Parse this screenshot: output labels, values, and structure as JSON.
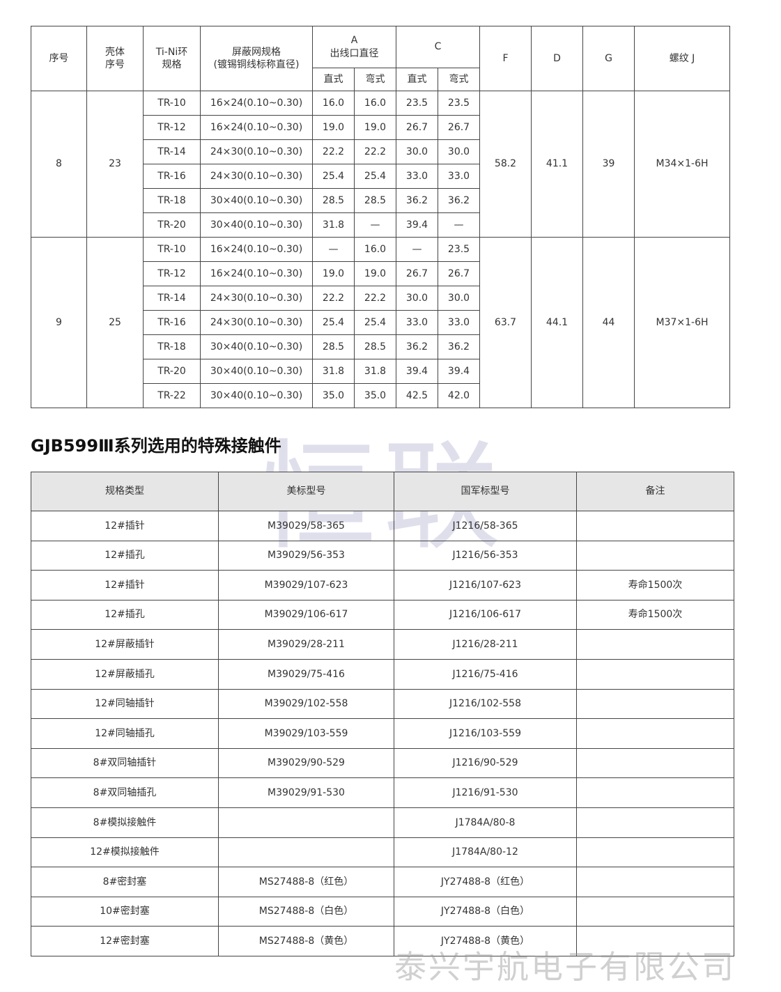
{
  "table1": {
    "header": {
      "no": "序号",
      "shell": "壳体\n序号",
      "ring": "Ti-Ni环\n规格",
      "shield": "屏蔽网规格\n(镀锡铜线标称直径)",
      "a": "A\n出线口直径",
      "c": "C",
      "f": "F",
      "d": "D",
      "g": "G",
      "thread": "螺纹 J",
      "sub": [
        "直式",
        "弯式",
        "直式",
        "弯式"
      ]
    },
    "groups": [
      {
        "no": "8",
        "shell": "23",
        "f": "58.2",
        "d": "41.1",
        "g": "39",
        "thread": "M34×1-6H",
        "rows": [
          [
            "TR-10",
            "16×24(0.10~0.30)",
            "16.0",
            "16.0",
            "23.5",
            "23.5"
          ],
          [
            "TR-12",
            "16×24(0.10~0.30)",
            "19.0",
            "19.0",
            "26.7",
            "26.7"
          ],
          [
            "TR-14",
            "24×30(0.10~0.30)",
            "22.2",
            "22.2",
            "30.0",
            "30.0"
          ],
          [
            "TR-16",
            "24×30(0.10~0.30)",
            "25.4",
            "25.4",
            "33.0",
            "33.0"
          ],
          [
            "TR-18",
            "30×40(0.10~0.30)",
            "28.5",
            "28.5",
            "36.2",
            "36.2"
          ],
          [
            "TR-20",
            "30×40(0.10~0.30)",
            "31.8",
            "—",
            "39.4",
            "—"
          ]
        ]
      },
      {
        "no": "9",
        "shell": "25",
        "f": "63.7",
        "d": "44.1",
        "g": "44",
        "thread": "M37×1-6H",
        "rows": [
          [
            "TR-10",
            "16×24(0.10~0.30)",
            "—",
            "16.0",
            "—",
            "23.5"
          ],
          [
            "TR-12",
            "16×24(0.10~0.30)",
            "19.0",
            "19.0",
            "26.7",
            "26.7"
          ],
          [
            "TR-14",
            "24×30(0.10~0.30)",
            "22.2",
            "22.2",
            "30.0",
            "30.0"
          ],
          [
            "TR-16",
            "24×30(0.10~0.30)",
            "25.4",
            "25.4",
            "33.0",
            "33.0"
          ],
          [
            "TR-18",
            "30×40(0.10~0.30)",
            "28.5",
            "28.5",
            "36.2",
            "36.2"
          ],
          [
            "TR-20",
            "30×40(0.10~0.30)",
            "31.8",
            "31.8",
            "39.4",
            "39.4"
          ],
          [
            "TR-22",
            "30×40(0.10~0.30)",
            "35.0",
            "35.0",
            "42.5",
            "42.0"
          ]
        ]
      }
    ]
  },
  "title": "GJB599Ⅲ系列选用的特殊接触件",
  "table2": {
    "header": [
      "规格类型",
      "美标型号",
      "国军标型号",
      "备注"
    ],
    "rows": [
      {
        "type": "12#插针",
        "us": "M39029/58-365",
        "gjb": "J1216/58-365"
      },
      {
        "type": "12#插孔",
        "us": "M39029/56-353",
        "gjb": "J1216/56-353"
      },
      {
        "type": "12#插针",
        "us": "M39029/107-623",
        "gjb": "J1216/107-623",
        "note": "寿命1500次"
      },
      {
        "type": "12#插孔",
        "us": "M39029/106-617",
        "gjb": "J1216/106-617",
        "note": "寿命1500次"
      },
      {
        "type": "12#屏蔽插针",
        "us": "M39029/28-211",
        "gjb": "J1216/28-211"
      },
      {
        "type": "12#屏蔽插孔",
        "us": "M39029/75-416",
        "gjb": "J1216/75-416"
      },
      {
        "type": "12#同轴插针",
        "us": "M39029/102-558",
        "gjb": "J1216/102-558"
      },
      {
        "type": "12#同轴插孔",
        "us": "M39029/103-559",
        "gjb": "J1216/103-559"
      },
      {
        "type": "8#双同轴插针",
        "us": "M39029/90-529",
        "gjb": "J1216/90-529"
      },
      {
        "type": "8#双同轴插孔",
        "us": "M39029/91-530",
        "gjb": "J1216/91-530"
      },
      {
        "type": "8#模拟接触件",
        "gjb": "J1784A/80-8"
      },
      {
        "type": "12#模拟接触件",
        "gjb": "J1784A/80-12"
      },
      {
        "type": "8#密封塞",
        "us": "MS27488-8（红色）",
        "gjb": "JY27488-8（红色）"
      },
      {
        "type": "10#密封塞",
        "us": "MS27488-8（白色）",
        "gjb": "JY27488-8（白色）"
      },
      {
        "type": "12#密封塞",
        "us": "MS27488-8（黄色）",
        "gjb": "JY27488-8（黄色）"
      }
    ]
  },
  "watermark": "恒联",
  "footer": "泰兴宇航电子有限公司"
}
